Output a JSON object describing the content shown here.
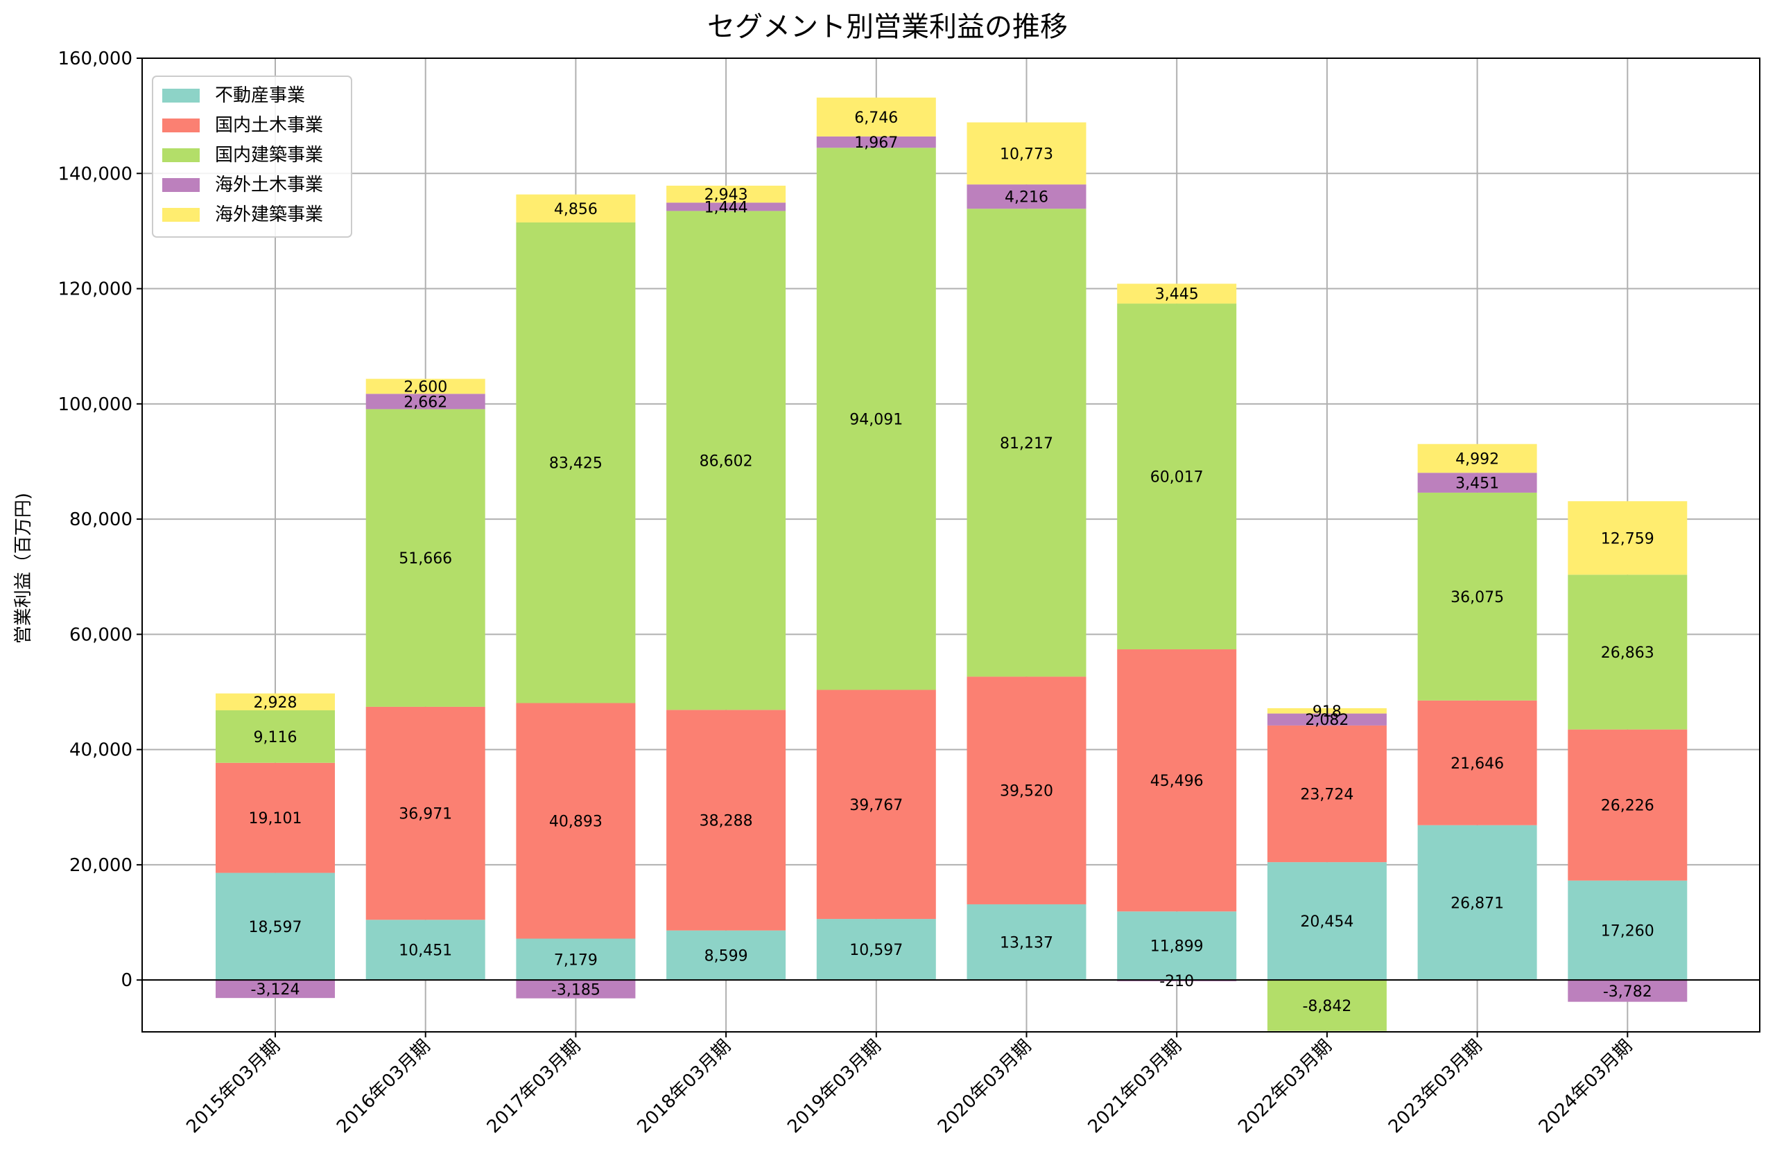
{
  "chart_data": {
    "type": "bar",
    "stacked": true,
    "title": "セグメント別営業利益の推移",
    "xlabel": "",
    "ylabel": "営業利益（百万円)",
    "ylim": [
      -9000,
      160000
    ],
    "yticks": [
      0,
      20000,
      40000,
      60000,
      80000,
      100000,
      120000,
      140000,
      160000
    ],
    "ytick_labels": [
      "0",
      "20,000",
      "40,000",
      "60,000",
      "80,000",
      "100,000",
      "120,000",
      "140,000",
      "160,000"
    ],
    "grid": true,
    "legend_position": "top-left",
    "categories": [
      "2015年03月期",
      "2016年03月期",
      "2017年03月期",
      "2018年03月期",
      "2019年03月期",
      "2020年03月期",
      "2021年03月期",
      "2022年03月期",
      "2023年03月期",
      "2024年03月期"
    ],
    "series": [
      {
        "name": "不動産事業",
        "color": "#8dd3c7",
        "values": [
          18597,
          10451,
          7179,
          8599,
          10597,
          13137,
          11899,
          20454,
          26871,
          17260
        ]
      },
      {
        "name": "国内土木事業",
        "color": "#fb8072",
        "values": [
          19101,
          36971,
          40893,
          38288,
          39767,
          39520,
          45496,
          23724,
          21646,
          26226
        ]
      },
      {
        "name": "国内建築事業",
        "color": "#b3de69",
        "values": [
          9116,
          51666,
          83425,
          86602,
          94091,
          81217,
          60017,
          -8842,
          36075,
          26863
        ]
      },
      {
        "name": "海外土木事業",
        "color": "#bc80bd",
        "values": [
          -3124,
          2662,
          -3185,
          1444,
          1967,
          4216,
          -210,
          2082,
          3451,
          -3782
        ]
      },
      {
        "name": "海外建築事業",
        "color": "#ffed6f",
        "values": [
          2928,
          2600,
          4856,
          2943,
          6746,
          10773,
          3445,
          918,
          4992,
          12759
        ]
      }
    ]
  }
}
